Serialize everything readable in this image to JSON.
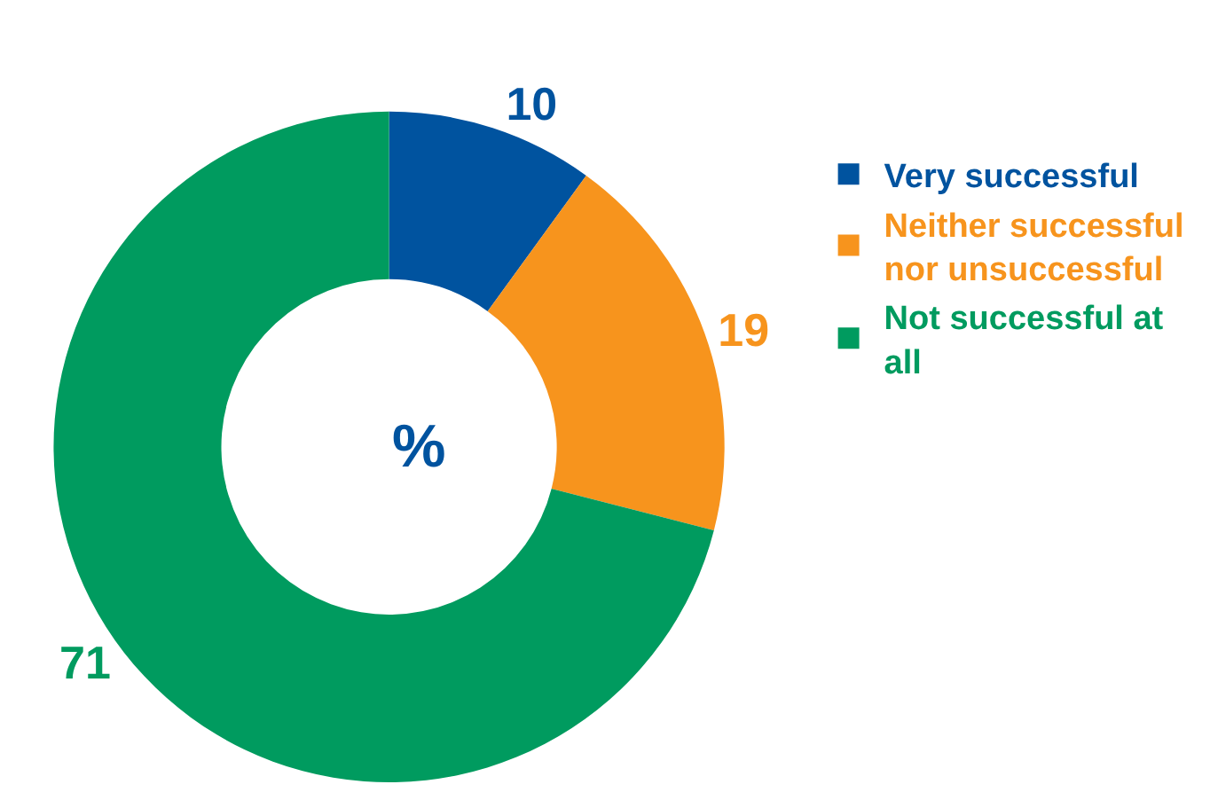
{
  "chart_data": {
    "type": "donut",
    "categories": [
      "Very successful",
      "Neither successful nor unsuccessful",
      "Not successful at all"
    ],
    "values": [
      10,
      19,
      71
    ],
    "colors": [
      "#00539f",
      "#f7941d",
      "#009b5f"
    ],
    "data_labels": true,
    "legend": "right",
    "annotations": [
      "%"
    ]
  }
}
